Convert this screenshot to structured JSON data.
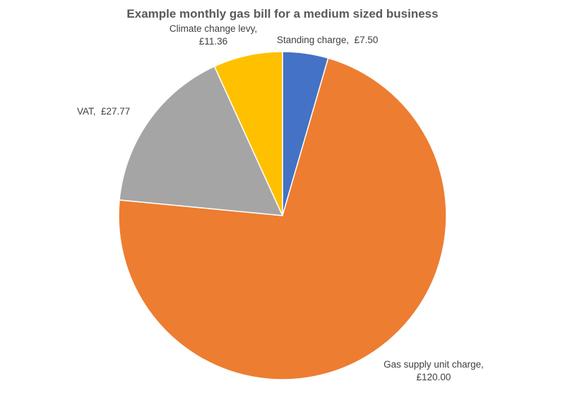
{
  "chart_data": {
    "type": "pie",
    "title": "Example monthly gas bill for a medium sized business",
    "currency": "£",
    "slices": [
      {
        "name": "Standing charge",
        "value": 7.5,
        "color": "#4472C4",
        "label_lines": [
          "Standing charge,  £7.50"
        ]
      },
      {
        "name": "Gas supply unit charge",
        "value": 120.0,
        "color": "#ED7D31",
        "label_lines": [
          "Gas supply unit charge,",
          "£120.00"
        ]
      },
      {
        "name": "VAT",
        "value": 27.77,
        "color": "#A5A5A5",
        "label_lines": [
          "VAT,  £27.77"
        ]
      },
      {
        "name": "Climate change levy",
        "value": 11.36,
        "color": "#FFC000",
        "label_lines": [
          "Climate change levy,",
          "£11.36"
        ]
      }
    ],
    "start_angle": "12 o'clock",
    "direction": "clockwise",
    "legend": "none"
  }
}
